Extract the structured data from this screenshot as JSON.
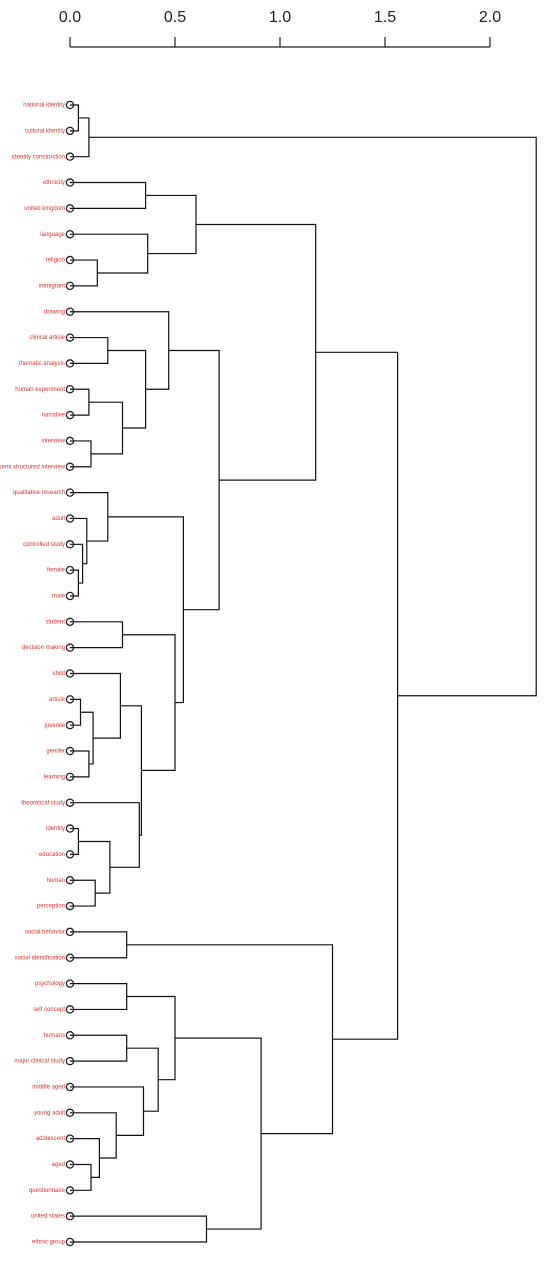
{
  "chart_data": {
    "type": "dendrogram",
    "xlim": [
      0,
      2
    ],
    "xticks": [
      {
        "value": 0,
        "label": "0.0"
      },
      {
        "value": 0.5,
        "label": "0.5"
      },
      {
        "value": 1,
        "label": "1.0"
      },
      {
        "value": 1.5,
        "label": "1.5"
      },
      {
        "value": 2,
        "label": "2.0"
      }
    ],
    "label_color": "#e0312b",
    "line_color": "#111111",
    "leaves": [
      "national identity",
      "cultural identity",
      "identity construction",
      "ethnicity",
      "united kingdom",
      "language",
      "religion",
      "immigrant",
      "drawing",
      "clinical article",
      "thematic analysis",
      "human experiment",
      "narrative",
      "interview",
      "semi structured interview",
      "qualitative research",
      "adult",
      "controlled study",
      "female",
      "male",
      "student",
      "decision making",
      "child",
      "article",
      "juvenile",
      "gender",
      "learning",
      "theoretical study",
      "identity",
      "education",
      "human",
      "perception",
      "social behavior",
      "social identification",
      "psychology",
      "self concept",
      "humans",
      "major clinical study",
      "middle aged",
      "young adult",
      "adolescent",
      "aged",
      "questionnaire",
      "united states",
      "ethnic group"
    ],
    "merges": [
      {
        "children": [
          0,
          1
        ],
        "height": 0.04
      },
      {
        "children": [
          45,
          2
        ],
        "height": 0.09
      },
      {
        "children": [
          6,
          7
        ],
        "height": 0.13
      },
      {
        "children": [
          5,
          47
        ],
        "height": 0.37
      },
      {
        "children": [
          3,
          4
        ],
        "height": 0.36
      },
      {
        "children": [
          49,
          48
        ],
        "height": 0.6
      },
      {
        "children": [
          9,
          10
        ],
        "height": 0.18
      },
      {
        "children": [
          11,
          12
        ],
        "height": 0.09
      },
      {
        "children": [
          13,
          14
        ],
        "height": 0.1
      },
      {
        "children": [
          52,
          53
        ],
        "height": 0.25
      },
      {
        "children": [
          51,
          54
        ],
        "height": 0.36
      },
      {
        "children": [
          8,
          55
        ],
        "height": 0.47
      },
      {
        "children": [
          18,
          19
        ],
        "height": 0.04
      },
      {
        "children": [
          17,
          57
        ],
        "height": 0.06
      },
      {
        "children": [
          16,
          58
        ],
        "height": 0.08
      },
      {
        "children": [
          15,
          59
        ],
        "height": 0.18
      },
      {
        "children": [
          20,
          21
        ],
        "height": 0.25
      },
      {
        "children": [
          23,
          24
        ],
        "height": 0.05
      },
      {
        "children": [
          25,
          26
        ],
        "height": 0.09
      },
      {
        "children": [
          62,
          63
        ],
        "height": 0.11
      },
      {
        "children": [
          22,
          64
        ],
        "height": 0.24
      },
      {
        "children": [
          28,
          29
        ],
        "height": 0.04
      },
      {
        "children": [
          30,
          31
        ],
        "height": 0.12
      },
      {
        "children": [
          66,
          67
        ],
        "height": 0.19
      },
      {
        "children": [
          27,
          68
        ],
        "height": 0.33
      },
      {
        "children": [
          65,
          69
        ],
        "height": 0.34
      },
      {
        "children": [
          61,
          70
        ],
        "height": 0.5
      },
      {
        "children": [
          60,
          71
        ],
        "height": 0.54
      },
      {
        "children": [
          56,
          72
        ],
        "height": 0.71
      },
      {
        "children": [
          50,
          73
        ],
        "height": 1.17
      },
      {
        "children": [
          32,
          33
        ],
        "height": 0.27
      },
      {
        "children": [
          34,
          35
        ],
        "height": 0.27
      },
      {
        "children": [
          36,
          37
        ],
        "height": 0.27
      },
      {
        "children": [
          41,
          42
        ],
        "height": 0.1
      },
      {
        "children": [
          40,
          78
        ],
        "height": 0.14
      },
      {
        "children": [
          39,
          79
        ],
        "height": 0.22
      },
      {
        "children": [
          38,
          80
        ],
        "height": 0.35
      },
      {
        "children": [
          77,
          81
        ],
        "height": 0.42
      },
      {
        "children": [
          76,
          82
        ],
        "height": 0.5
      },
      {
        "children": [
          43,
          44
        ],
        "height": 0.65
      },
      {
        "children": [
          83,
          84
        ],
        "height": 0.91
      },
      {
        "children": [
          75,
          85
        ],
        "height": 1.25
      },
      {
        "children": [
          74,
          86
        ],
        "height": 1.56
      },
      {
        "children": [
          46,
          87
        ],
        "height": 2.22
      }
    ]
  }
}
